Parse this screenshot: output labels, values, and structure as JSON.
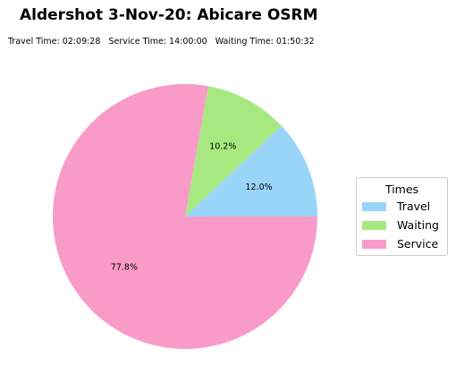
{
  "chart_data": {
    "type": "pie",
    "title": "Aldershot 3-Nov-20: Abicare OSRM",
    "subtitle": [
      "Travel Time: 02:09:28",
      "Service Time: 14:00:00",
      "Waiting Time: 01:50:32"
    ],
    "slices": [
      {
        "name": "Travel",
        "value": 12.0,
        "label": "12.0%",
        "color": "#99d4f9"
      },
      {
        "name": "Waiting",
        "value": 10.2,
        "label": "10.2%",
        "color": "#a8e880"
      },
      {
        "name": "Service",
        "value": 77.8,
        "label": "77.8%",
        "color": "#f89bc8"
      }
    ],
    "start_angle": 0,
    "direction": "counterclockwise",
    "legend": {
      "title": "Times",
      "placement": "right"
    }
  }
}
